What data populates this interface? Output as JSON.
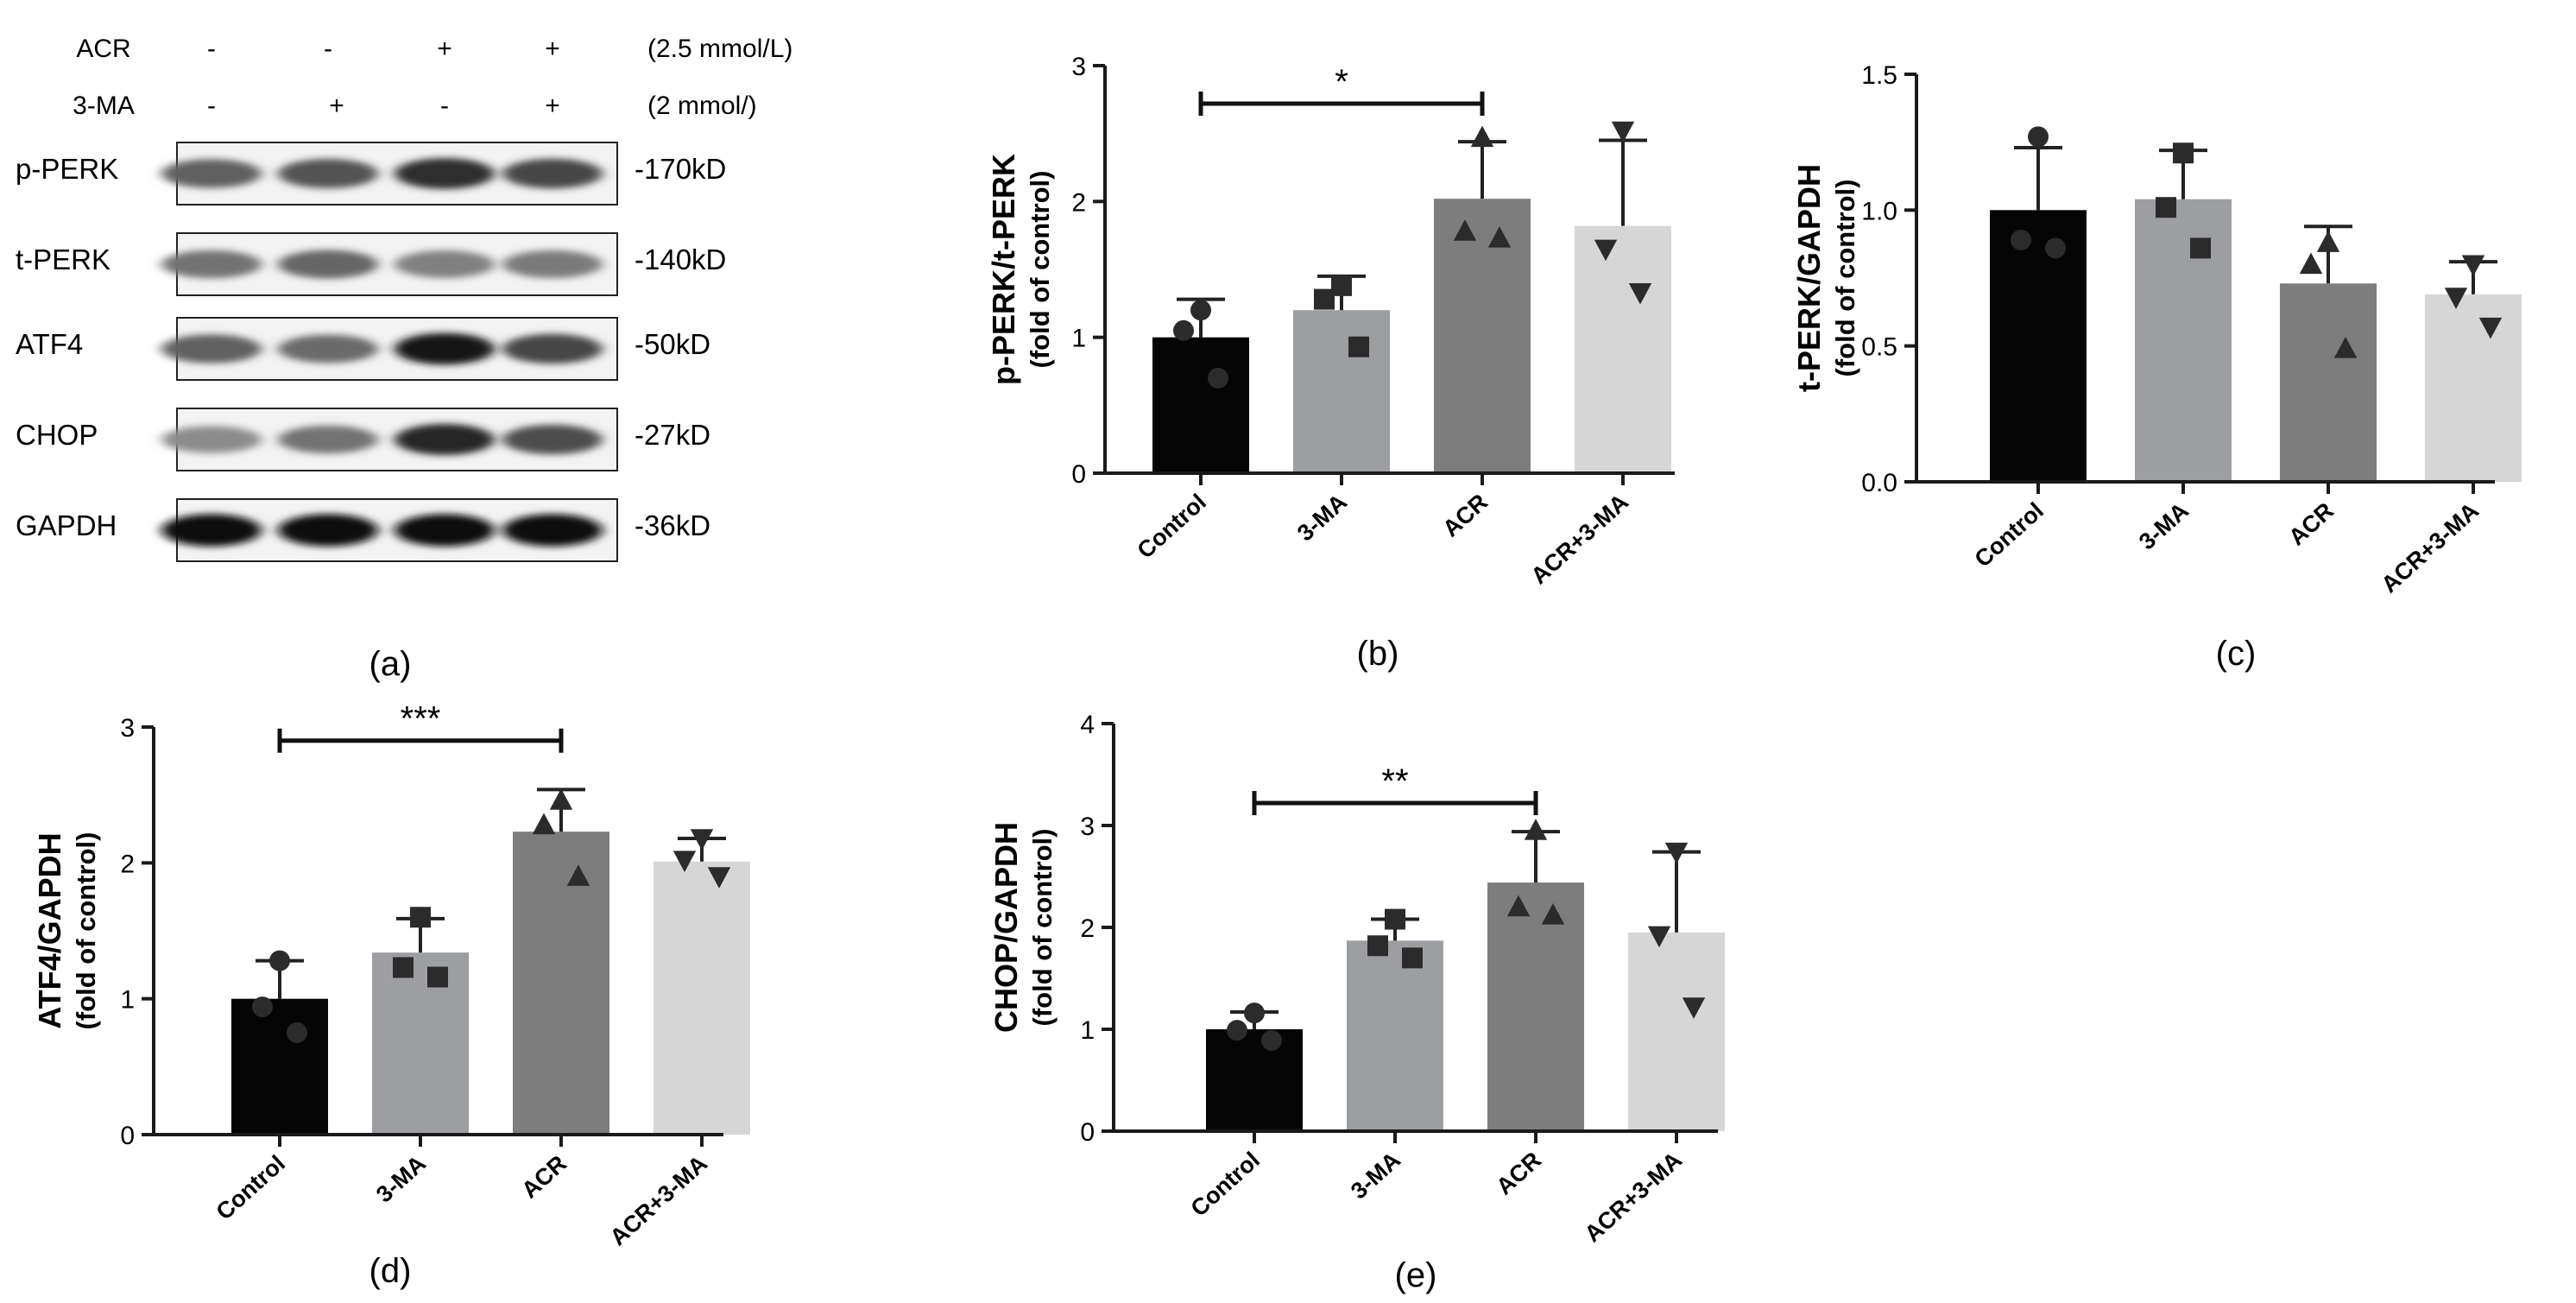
{
  "blot": {
    "caption": "(a)",
    "treatments": [
      {
        "name": "ACR",
        "signs": [
          "-",
          "-",
          "+",
          "+"
        ],
        "dose": "(2.5 mmol/L)"
      },
      {
        "name": "3-MA",
        "signs": [
          "-",
          "+",
          "-",
          "+"
        ],
        "dose": "(2 mmol/)"
      }
    ],
    "bands": [
      {
        "label": "p-PERK",
        "size": "-170kD",
        "intensity": [
          0.62,
          0.68,
          0.82,
          0.72
        ]
      },
      {
        "label": "t-PERK",
        "size": "-140kD",
        "intensity": [
          0.55,
          0.6,
          0.5,
          0.52
        ]
      },
      {
        "label": "ATF4",
        "size": "-50kD",
        "intensity": [
          0.62,
          0.58,
          0.9,
          0.72
        ]
      },
      {
        "label": "CHOP",
        "size": "-27kD",
        "intensity": [
          0.45,
          0.55,
          0.85,
          0.7
        ]
      },
      {
        "label": "GAPDH",
        "size": "-36kD",
        "intensity": [
          0.95,
          0.95,
          0.95,
          0.95
        ]
      }
    ]
  },
  "colors": {
    "bars": [
      "#050505",
      "#9d9ea2",
      "#7d7d7d",
      "#d6d6d6"
    ],
    "marker": "#2b2b2b",
    "axis": "#1a1a1a"
  },
  "chart_data": [
    {
      "id": "b",
      "caption": "(b)",
      "type": "bar",
      "ylabel": "p-PERK/t-PERK",
      "ylabel2": "(fold of control)",
      "ylim": [
        0,
        3
      ],
      "yticks": [
        "0",
        "1",
        "2",
        "3"
      ],
      "ytick_values": [
        0,
        1,
        2,
        3
      ],
      "categories": [
        "Control",
        "3-MA",
        "ACR",
        "ACR+3-MA"
      ],
      "values": [
        1.0,
        1.2,
        2.02,
        1.82
      ],
      "errors": [
        0.28,
        0.25,
        0.42,
        0.63
      ],
      "points": [
        [
          1.2,
          1.05,
          0.7
        ],
        [
          1.38,
          1.28,
          0.93
        ],
        [
          2.47,
          1.78,
          1.73
        ],
        [
          2.52,
          1.65,
          1.33
        ]
      ],
      "markers": [
        "circle",
        "square",
        "triangle-up",
        "triangle-down"
      ],
      "significance": [
        {
          "from": 0,
          "to": 2,
          "label": "*",
          "y": 2.72
        }
      ]
    },
    {
      "id": "c",
      "caption": "(c)",
      "type": "bar",
      "ylabel": "t-PERK/GAPDH",
      "ylabel2": "(fold of control)",
      "ylim": [
        0,
        1.5
      ],
      "yticks": [
        "0.0",
        "0.5",
        "1.0",
        "1.5"
      ],
      "ytick_values": [
        0,
        0.5,
        1.0,
        1.5
      ],
      "categories": [
        "Control",
        "3-MA",
        "ACR",
        "ACR+3-MA"
      ],
      "values": [
        1.0,
        1.04,
        0.73,
        0.69
      ],
      "errors": [
        0.23,
        0.18,
        0.21,
        0.12
      ],
      "points": [
        [
          1.27,
          0.89,
          0.86
        ],
        [
          1.21,
          1.01,
          0.86
        ],
        [
          0.88,
          0.8,
          0.49
        ],
        [
          0.8,
          0.68,
          0.57
        ]
      ],
      "markers": [
        "circle",
        "square",
        "triangle-up",
        "triangle-down"
      ],
      "significance": []
    },
    {
      "id": "d",
      "caption": "(d)",
      "type": "bar",
      "ylabel": "ATF4/GAPDH",
      "ylabel2": "(fold of control)",
      "ylim": [
        0,
        3
      ],
      "yticks": [
        "0",
        "1",
        "2",
        "3"
      ],
      "ytick_values": [
        0,
        1,
        2,
        3
      ],
      "categories": [
        "Control",
        "3-MA",
        "ACR",
        "ACR+3-MA"
      ],
      "values": [
        1.0,
        1.34,
        2.23,
        2.01
      ],
      "errors": [
        0.28,
        0.25,
        0.31,
        0.17
      ],
      "points": [
        [
          1.28,
          0.94,
          0.75
        ],
        [
          1.6,
          1.23,
          1.16
        ],
        [
          2.46,
          2.28,
          1.9
        ],
        [
          2.18,
          2.02,
          1.9
        ]
      ],
      "markers": [
        "circle",
        "square",
        "triangle-up",
        "triangle-down"
      ],
      "significance": [
        {
          "from": 0,
          "to": 2,
          "label": "***",
          "y": 2.9
        }
      ]
    },
    {
      "id": "e",
      "caption": "(e)",
      "type": "bar",
      "ylabel": "CHOP/GAPDH",
      "ylabel2": "(fold of control)",
      "ylim": [
        0,
        4
      ],
      "yticks": [
        "0",
        "1",
        "2",
        "3",
        "4"
      ],
      "ytick_values": [
        0,
        1,
        2,
        3,
        4
      ],
      "categories": [
        "Control",
        "3-MA",
        "ACR",
        "ACR+3-MA"
      ],
      "values": [
        1.0,
        1.87,
        2.44,
        1.95
      ],
      "errors": [
        0.17,
        0.21,
        0.5,
        0.79
      ],
      "points": [
        [
          1.16,
          0.99,
          0.89
        ],
        [
          2.08,
          1.82,
          1.7
        ],
        [
          2.95,
          2.2,
          2.12
        ],
        [
          2.74,
          1.92,
          1.22
        ]
      ],
      "markers": [
        "circle",
        "square",
        "triangle-up",
        "triangle-down"
      ],
      "significance": [
        {
          "from": 0,
          "to": 2,
          "label": "**",
          "y": 3.22
        }
      ]
    }
  ]
}
